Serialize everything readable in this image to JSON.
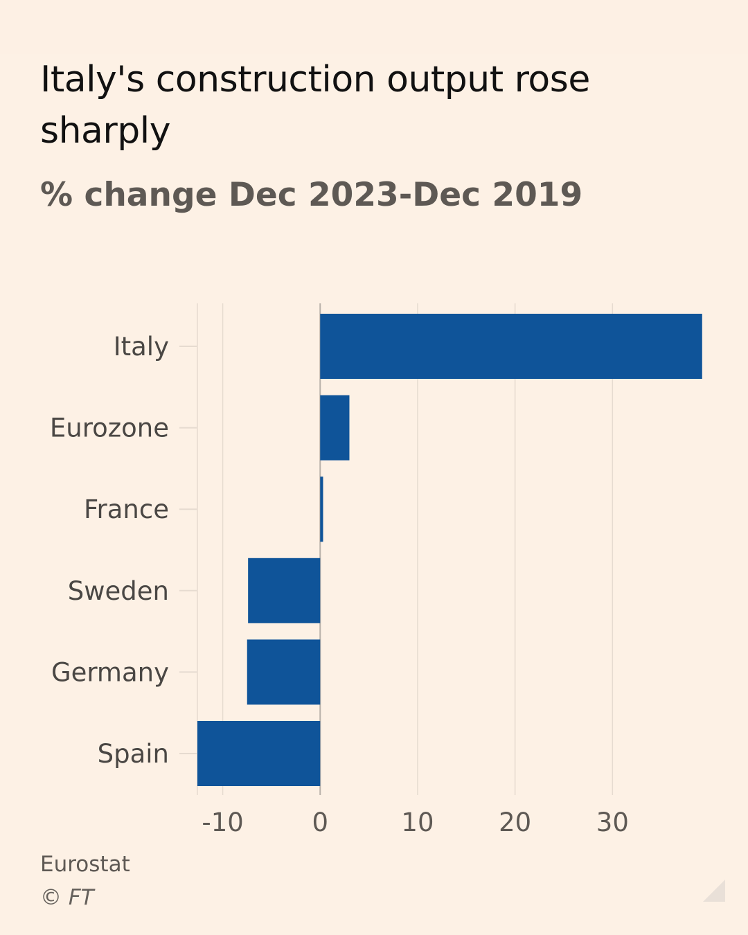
{
  "title": "Italy's construction output rose sharply",
  "subtitle": "% change Dec 2023-Dec 2019",
  "source": "Eurostat",
  "copyright": "© FT",
  "colors": {
    "background": "#fdf1e5",
    "bar": "#0f5499",
    "grid": "#e6dbd0",
    "zero_line": "#b9b1a9"
  },
  "chart_data": {
    "type": "bar",
    "orientation": "horizontal",
    "categories": [
      "Italy",
      "Eurozone",
      "France",
      "Sweden",
      "Germany",
      "Spain"
    ],
    "values": [
      39.2,
      3.0,
      0.3,
      -7.4,
      -7.5,
      -12.6
    ],
    "xlim": [
      -12.6,
      39.5
    ],
    "x_ticks": [
      -10,
      0,
      10,
      20,
      30
    ],
    "x_tick_labels": [
      "-10",
      "0",
      "10",
      "20",
      "30"
    ],
    "grid": true
  }
}
